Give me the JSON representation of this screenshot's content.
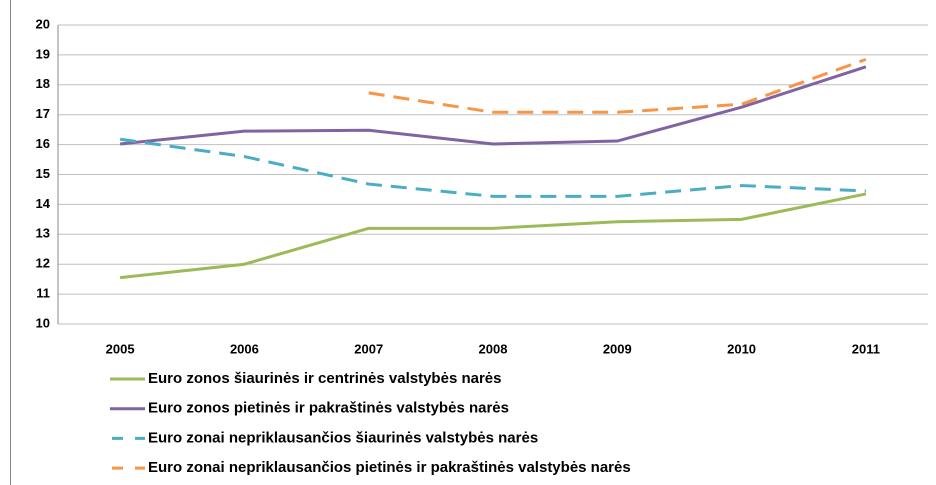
{
  "chart_data": {
    "type": "line",
    "categories": [
      "2005",
      "2006",
      "2007",
      "2008",
      "2009",
      "2010",
      "2011"
    ],
    "series": [
      {
        "name": "Euro zonos šiaurinės ir centrinės valstybės narės",
        "color": "#9bbb59",
        "dash": false,
        "values": [
          11.55,
          12.0,
          13.2,
          13.2,
          13.42,
          13.5,
          14.35
        ]
      },
      {
        "name": "Euro zonos pietinės ir pakraštinės valstybės narės",
        "color": "#8064a2",
        "dash": false,
        "values": [
          16.02,
          16.45,
          16.48,
          16.02,
          16.12,
          17.25,
          18.6
        ]
      },
      {
        "name": "Euro zonai nepriklausančios šiaurinės valstybės narės",
        "color": "#4bacc6",
        "dash": true,
        "values": [
          16.18,
          15.6,
          14.68,
          14.27,
          14.27,
          14.63,
          14.45
        ]
      },
      {
        "name": "Euro zonai nepriklausančios pietinės ir pakraštinės valstybės narės",
        "color": "#f79646",
        "dash": true,
        "values": [
          null,
          null,
          17.73,
          17.08,
          17.08,
          17.35,
          18.85
        ]
      }
    ],
    "ylim": [
      10,
      20
    ],
    "yticks": [
      10,
      11,
      12,
      13,
      14,
      15,
      16,
      17,
      18,
      19,
      20
    ],
    "grid": true
  }
}
